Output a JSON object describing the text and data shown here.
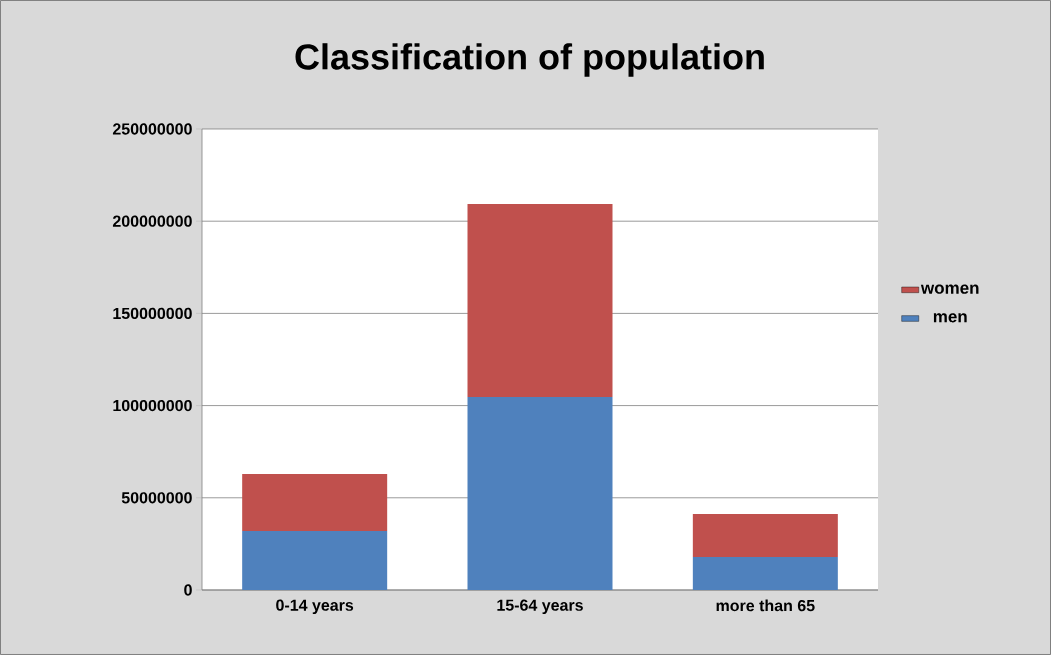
{
  "chart_data": {
    "type": "bar",
    "title": "Classification of population",
    "stacked": true,
    "categories": [
      "0-14 years",
      "15-64 years",
      "more than 65"
    ],
    "series": [
      {
        "name": "men",
        "color": "#4f81bd",
        "values": [
          32000000,
          104700000,
          17900000
        ]
      },
      {
        "name": "women",
        "color": "#c0504d",
        "values": [
          30900000,
          104600000,
          23300000
        ]
      }
    ],
    "ylim": [
      0,
      250000000
    ],
    "yticks": [
      0,
      50000000,
      100000000,
      150000000,
      200000000,
      250000000
    ],
    "grid": "y",
    "legend": "right"
  }
}
